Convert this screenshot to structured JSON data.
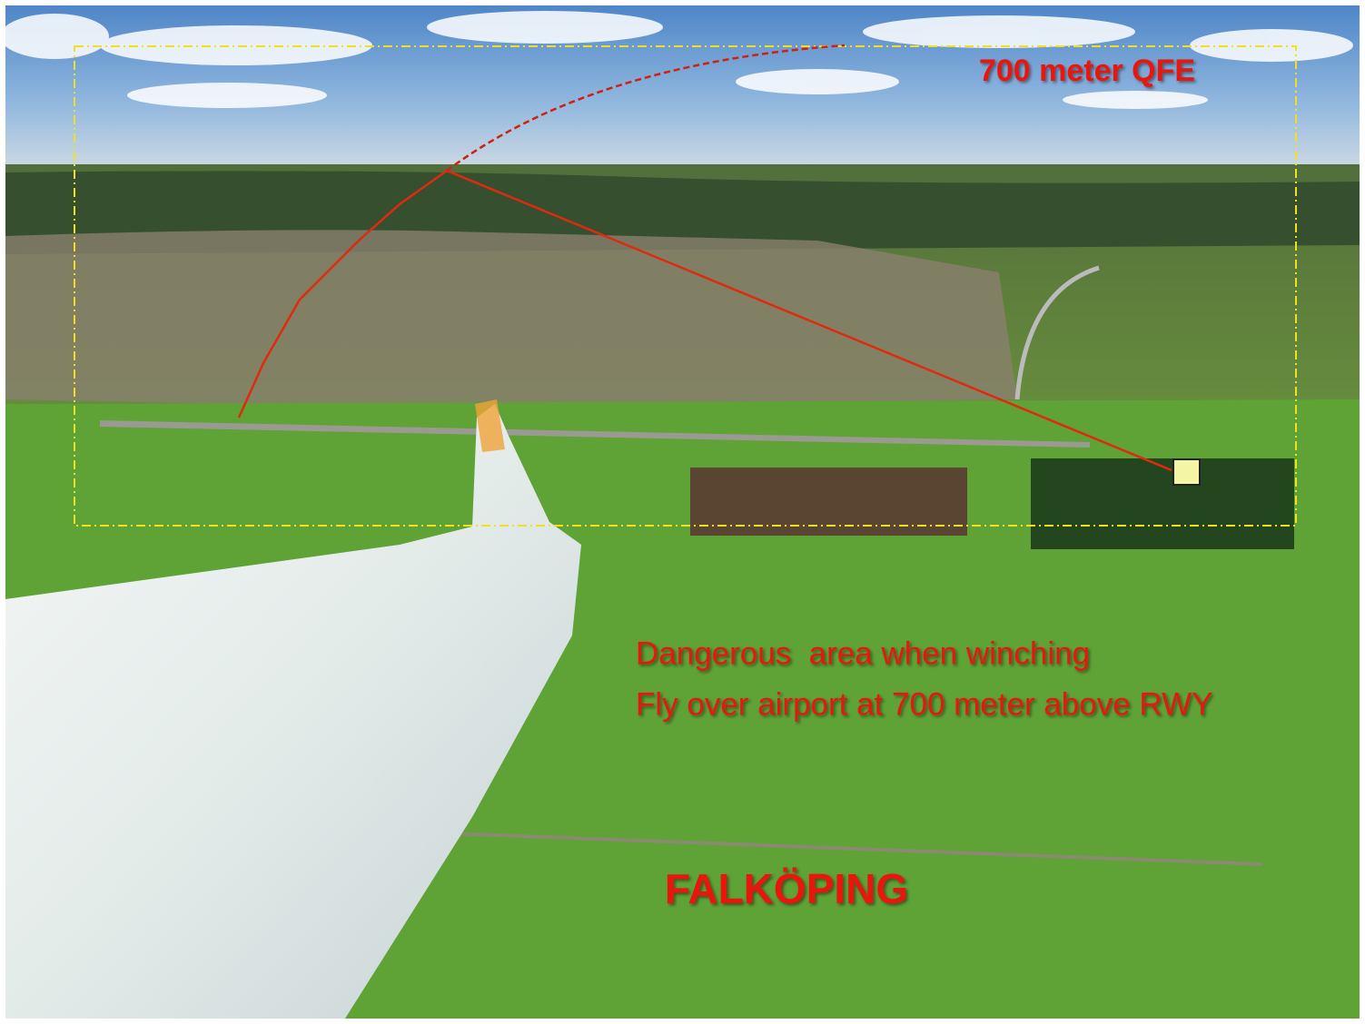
{
  "annotations": {
    "altitude": "700 meter QFE",
    "warning": [
      "Dangerous  area when winching",
      "Fly over airport at 700 meter above RWY"
    ],
    "place": "FALKÖPING"
  }
}
